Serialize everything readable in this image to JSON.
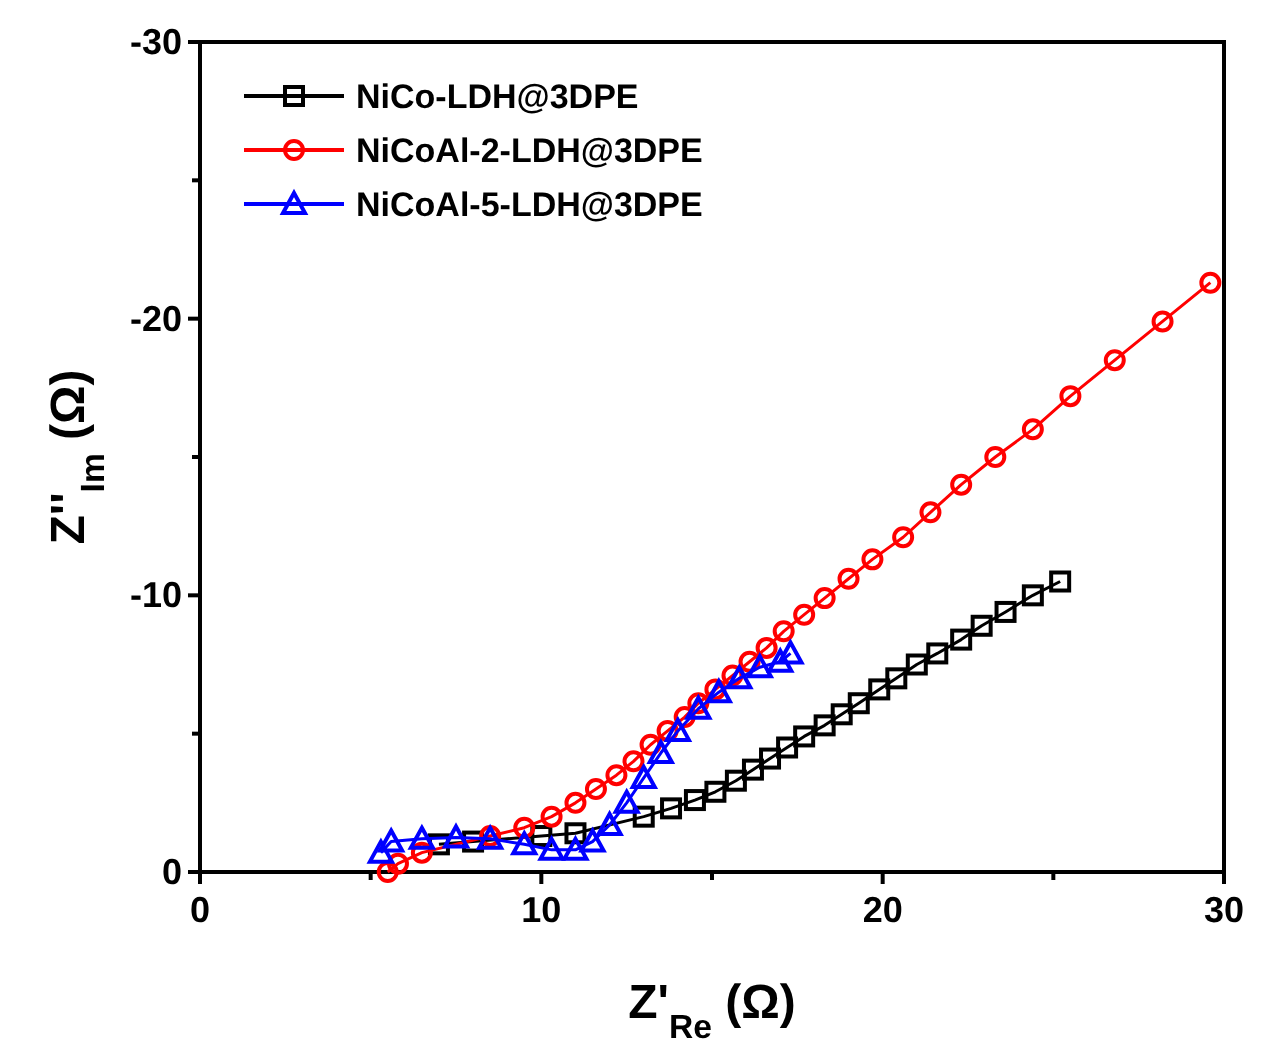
{
  "chart_data": {
    "type": "line",
    "xlabel": "Z'$_{Re}$ (Ω)",
    "ylabel": "Z''$_{Im}$ (Ω)",
    "xlim": [
      0,
      30
    ],
    "xticks": [
      0,
      {
        "value": 5,
        "label": null
      },
      10,
      {
        "value": 15,
        "label": null
      },
      20,
      {
        "value": 25,
        "label": null
      },
      30
    ],
    "ylim": [
      0,
      -30
    ],
    "yticks": [
      0,
      {
        "value": -5,
        "label": null
      },
      -10,
      {
        "value": -15,
        "label": null
      },
      -20,
      {
        "value": -25,
        "label": null
      },
      -30
    ],
    "grid": false,
    "legend": "top left",
    "line_style": "solid",
    "series": [
      {
        "name": "NiCo-LDH@3DPE",
        "color": "#000000",
        "marker": "square",
        "x": [
          7.0,
          8.0,
          10.0,
          11.0,
          13.0,
          13.8,
          14.5,
          15.1,
          15.7,
          16.2,
          16.7,
          17.2,
          17.7,
          18.3,
          18.8,
          19.3,
          19.9,
          20.4,
          21.0,
          21.6,
          22.3,
          22.9,
          23.6,
          24.4,
          25.2
        ],
        "values": [
          -1.0,
          -1.1,
          -1.3,
          -1.4,
          -2.0,
          -2.3,
          -2.6,
          -2.9,
          -3.3,
          -3.7,
          -4.1,
          -4.5,
          -4.9,
          -5.3,
          -5.7,
          -6.1,
          -6.6,
          -7.0,
          -7.5,
          -7.9,
          -8.4,
          -8.9,
          -9.4,
          -10.0,
          -10.5
        ]
      },
      {
        "name": "NiCoAl-2-LDH@3DPE",
        "color": "#ff0000",
        "marker": "circle",
        "x": [
          5.5,
          5.8,
          6.5,
          8.5,
          9.5,
          10.3,
          11.0,
          11.6,
          12.2,
          12.7,
          13.2,
          13.7,
          14.2,
          14.6,
          15.1,
          15.6,
          16.1,
          16.6,
          17.1,
          17.7,
          18.3,
          19.0,
          19.7,
          20.6,
          21.4,
          22.3,
          23.3,
          24.4,
          25.5,
          26.8,
          28.2,
          29.6
        ],
        "values": [
          0.0,
          -0.3,
          -0.7,
          -1.3,
          -1.6,
          -2.0,
          -2.5,
          -3.0,
          -3.5,
          -4.0,
          -4.6,
          -5.1,
          -5.6,
          -6.1,
          -6.6,
          -7.1,
          -7.6,
          -8.1,
          -8.7,
          -9.3,
          -9.9,
          -10.6,
          -11.3,
          -12.1,
          -13.0,
          -14.0,
          -15.0,
          -16.0,
          -17.2,
          -18.5,
          -19.9,
          -21.3
        ]
      },
      {
        "name": "NiCoAl-5-LDH@3DPE",
        "color": "#0000ff",
        "marker": "triangle",
        "x": [
          5.3,
          5.6,
          6.5,
          7.5,
          8.5,
          9.5,
          10.3,
          11.0,
          11.5,
          12.0,
          12.5,
          13.0,
          13.5,
          14.0,
          14.6,
          15.2,
          15.8,
          16.4,
          17.0,
          17.3
        ],
        "values": [
          -0.7,
          -1.1,
          -1.2,
          -1.25,
          -1.2,
          -1.0,
          -0.8,
          -0.8,
          -1.1,
          -1.7,
          -2.5,
          -3.4,
          -4.3,
          -5.1,
          -5.9,
          -6.5,
          -7.0,
          -7.4,
          -7.6,
          -7.9
        ]
      }
    ]
  }
}
